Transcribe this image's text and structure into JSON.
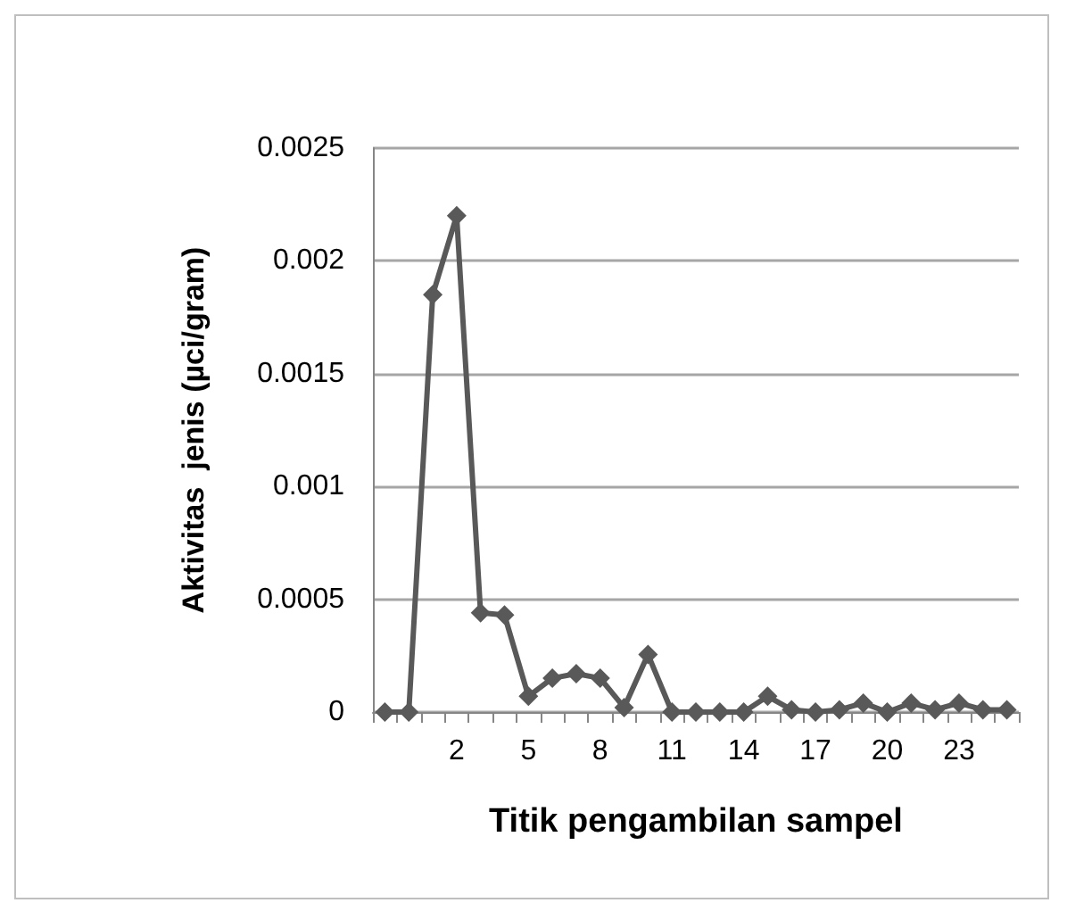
{
  "chart_data": {
    "type": "line",
    "xlabel": "Titik pengambilan sampel",
    "ylabel": "Aktivitas  jenis (µci/gram)",
    "categories": [
      null,
      null,
      null,
      "2",
      null,
      null,
      "5",
      null,
      null,
      "8",
      null,
      null,
      "11",
      null,
      null,
      "14",
      null,
      null,
      "17",
      null,
      null,
      "20",
      null,
      null,
      "23",
      null,
      null
    ],
    "series": [
      {
        "color": "#595959",
        "values": [
          0,
          0,
          0.00185,
          0.0022,
          0.00044,
          0.00043,
          7e-05,
          0.00015,
          0.00017,
          0.00015,
          2e-05,
          0.000255,
          0,
          0,
          0,
          0,
          7e-05,
          1e-05,
          0,
          1e-05,
          4e-05,
          0,
          4e-05,
          1e-05,
          4e-05,
          1e-05,
          1e-05
        ]
      }
    ],
    "ylim": [
      0,
      0.0025
    ],
    "yticks": [
      0,
      0.0005,
      0.001,
      0.0015,
      0.002,
      0.0025
    ],
    "grid": "y",
    "marker": "diamond",
    "line_style": "solid"
  }
}
